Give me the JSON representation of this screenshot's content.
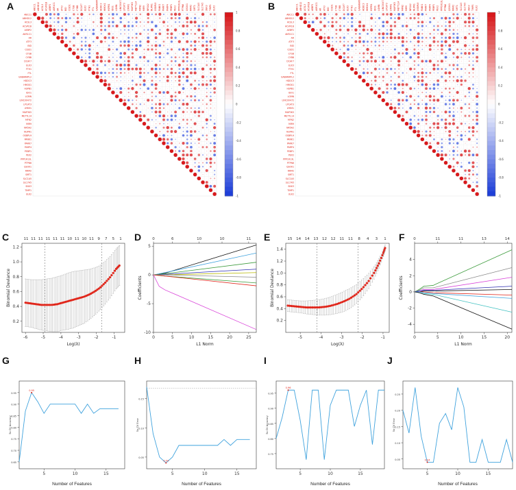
{
  "figure": {
    "panels": {
      "A": {
        "letter": "A"
      },
      "B": {
        "letter": "B"
      },
      "C": {
        "letter": "C"
      },
      "D": {
        "letter": "D"
      },
      "E": {
        "letter": "E"
      },
      "F": {
        "letter": "F"
      },
      "G": {
        "letter": "G"
      },
      "H": {
        "letter": "H"
      },
      "I": {
        "letter": "I"
      },
      "J": {
        "letter": "J"
      }
    }
  },
  "colors": {
    "positive": "#d7191c",
    "negative": "#1f3fd8",
    "diag": "#d7191c",
    "curve": "#e0261b",
    "line": "#3fa2dd"
  },
  "chart_data": [
    {
      "id": "A",
      "type": "heatmap",
      "genes": [
        "ABCC1",
        "ABHD12",
        "ACSL3",
        "ACVR1B",
        "AEBP2",
        "AKR1C1",
        "AR",
        "ATF3",
        "BID",
        "CISD1",
        "CTSB",
        "CYBB",
        "DCAF7",
        "ELK3",
        "FTH1",
        "FTL",
        "GABARAPL2",
        "HDDC3",
        "HMOX1",
        "HSPB1",
        "IDO1",
        "LGMN",
        "LINC00472",
        "LPCAT3",
        "LYRM1",
        "MAP3K5",
        "METTL14",
        "MFN2",
        "MIR9",
        "NR5A2",
        "NUPR1",
        "OSBPL9",
        "PANK1",
        "PARK7",
        "PARP4",
        "PEBP1",
        "PEX2",
        "PPP1R13L",
        "PTPN6",
        "QSOX1",
        "RRM2",
        "SIRT1",
        "SLC1A5",
        "SLC7A5",
        "SNX3",
        "TIMP1",
        "ULK2"
      ],
      "colorbar_ticks": [
        "1",
        "0.8",
        "0.6",
        "0.4",
        "0.2",
        "0",
        "-0.2",
        "-0.4",
        "-0.6",
        "-0.8",
        "-1"
      ],
      "colorbar_range": [
        -1,
        1
      ]
    },
    {
      "id": "B",
      "type": "heatmap",
      "genes": [
        "ABCC1",
        "ABHD12",
        "ACSL3",
        "ACVR1B",
        "AEBP2",
        "AKR1C1",
        "AR",
        "ATF3",
        "BID",
        "CISD1",
        "CTSB",
        "CYBB",
        "DCAF7",
        "ELK3",
        "FTH1",
        "FTL",
        "GABARAPL2",
        "HDDC3",
        "HMOX1",
        "HSPB1",
        "IDO1",
        "LGMN",
        "LINC00472",
        "LPCAT3",
        "LYRM1",
        "MAP3K5",
        "METTL14",
        "MFN2",
        "MIR9",
        "NR5A2",
        "NUPR1",
        "OSBPL9",
        "PANK1",
        "PARK7",
        "PARP4",
        "PEBP1",
        "PEX2",
        "PPP1R13L",
        "PTPN6",
        "QSOX1",
        "RRM2",
        "SIRT1",
        "SLC1A5",
        "SLC7A5",
        "SNX3",
        "TIMP1",
        "ULK2"
      ],
      "colorbar_ticks": [
        "1",
        "0.8",
        "0.6",
        "0.4",
        "0.2",
        "0",
        "-0.2",
        "-0.4",
        "-0.6",
        "-0.8",
        "-1"
      ],
      "colorbar_range": [
        -1,
        1
      ]
    },
    {
      "id": "C",
      "type": "scatter",
      "xlabel": "Log(λ)",
      "ylabel": "Binomial Deviance",
      "xlim": [
        -6.2,
        -0.4
      ],
      "ylim": [
        0.05,
        1.25
      ],
      "xticks": [
        "-6",
        "-5",
        "-4",
        "-3",
        "-2",
        "-1"
      ],
      "xtick_values": [
        -6,
        -5,
        -4,
        -3,
        -2,
        -1
      ],
      "yticks": [
        "0.2",
        "0.4",
        "0.6",
        "0.8",
        "1.0",
        "1.2"
      ],
      "ytick_values": [
        0.2,
        0.4,
        0.6,
        0.8,
        1.0,
        1.2
      ],
      "top_counts": [
        "11",
        "11",
        "11",
        "11",
        "11",
        "11",
        "10",
        "11",
        "10",
        "11",
        "9",
        "7",
        "5",
        "1"
      ],
      "vlines": [
        -4.9,
        -1.7
      ],
      "x": [
        -6.0,
        -5.7,
        -5.4,
        -5.1,
        -4.8,
        -4.5,
        -4.2,
        -3.9,
        -3.6,
        -3.3,
        -3.0,
        -2.7,
        -2.4,
        -2.1,
        -1.8,
        -1.5,
        -1.2,
        -0.9,
        -0.7
      ],
      "y": [
        0.45,
        0.44,
        0.43,
        0.42,
        0.42,
        0.42,
        0.43,
        0.45,
        0.47,
        0.49,
        0.51,
        0.53,
        0.56,
        0.6,
        0.65,
        0.72,
        0.8,
        0.9,
        0.95
      ],
      "err": [
        0.32,
        0.32,
        0.33,
        0.34,
        0.35,
        0.36,
        0.37,
        0.37,
        0.38,
        0.38,
        0.37,
        0.36,
        0.34,
        0.32,
        0.3,
        0.29,
        0.28,
        0.27,
        0.27
      ]
    },
    {
      "id": "D",
      "type": "line",
      "xlabel": "L1 Norm",
      "ylabel": "Coefficients",
      "xlim": [
        0,
        27
      ],
      "ylim": [
        -10,
        5.5
      ],
      "xticks": [
        "0",
        "5",
        "10",
        "15",
        "20",
        "25"
      ],
      "xtick_values": [
        0,
        5,
        10,
        15,
        20,
        25
      ],
      "yticks": [
        "-10",
        "-5",
        "0",
        "5"
      ],
      "ytick_values": [
        -10,
        -5,
        0,
        5
      ],
      "top_axis_labels": [
        "0",
        "6",
        "10",
        "10",
        "11"
      ],
      "top_axis_values": [
        0,
        5,
        12,
        18,
        25
      ],
      "series": [
        {
          "name": "s1",
          "color": "#111111",
          "x": [
            0,
            3,
            27
          ],
          "y": [
            0,
            0.3,
            5.2
          ]
        },
        {
          "name": "s2",
          "color": "#3fa2dd",
          "x": [
            0,
            3,
            27
          ],
          "y": [
            0,
            0.4,
            3.8
          ]
        },
        {
          "name": "s3",
          "color": "#3a9a3a",
          "x": [
            0,
            3,
            27
          ],
          "y": [
            0,
            0.2,
            2.2
          ]
        },
        {
          "name": "s4",
          "color": "#2b2bb0",
          "x": [
            0,
            3,
            27
          ],
          "y": [
            0,
            0.1,
            1.0
          ]
        },
        {
          "name": "s5",
          "color": "#b8b800",
          "x": [
            0,
            3,
            27
          ],
          "y": [
            0,
            0,
            0.4
          ]
        },
        {
          "name": "s6",
          "color": "#888888",
          "x": [
            0,
            3,
            27
          ],
          "y": [
            0,
            0,
            -0.4
          ]
        },
        {
          "name": "s7",
          "color": "#3a9a3a",
          "x": [
            0,
            3,
            27
          ],
          "y": [
            0,
            -0.2,
            -1.4
          ]
        },
        {
          "name": "s8",
          "color": "#e0261b",
          "x": [
            0,
            3,
            27
          ],
          "y": [
            0,
            -0.2,
            -1.9
          ]
        },
        {
          "name": "s9",
          "color": "#d83fd8",
          "x": [
            0,
            1.5,
            3,
            27
          ],
          "y": [
            0,
            -2.0,
            -2.6,
            -9.5
          ]
        }
      ]
    },
    {
      "id": "E",
      "type": "scatter",
      "xlabel": "Log(λ)",
      "ylabel": "Binomial Deviance",
      "xlim": [
        -5.7,
        -0.7
      ],
      "ylim": [
        0.0,
        1.5
      ],
      "xticks": [
        "-5",
        "-4",
        "-3",
        "-2",
        "-1"
      ],
      "xtick_values": [
        -5,
        -4,
        -3,
        -2,
        -1
      ],
      "yticks": [
        "0.2",
        "0.4",
        "0.6",
        "0.8",
        "1.0",
        "1.2",
        "1.4"
      ],
      "ytick_values": [
        0.2,
        0.4,
        0.6,
        0.8,
        1.0,
        1.2,
        1.4
      ],
      "top_counts": [
        "15",
        "14",
        "14",
        "13",
        "12",
        "12",
        "11",
        "11",
        "8",
        "4",
        "3",
        "1"
      ],
      "vlines": [
        -4.2,
        -2.2
      ],
      "x": [
        -5.6,
        -5.3,
        -5.0,
        -4.7,
        -4.4,
        -4.1,
        -3.8,
        -3.5,
        -3.2,
        -2.9,
        -2.6,
        -2.3,
        -2.0,
        -1.7,
        -1.4,
        -1.2,
        -1.0,
        -0.9
      ],
      "y": [
        0.45,
        0.44,
        0.43,
        0.42,
        0.42,
        0.42,
        0.43,
        0.45,
        0.48,
        0.52,
        0.57,
        0.64,
        0.74,
        0.86,
        1.02,
        1.16,
        1.32,
        1.42
      ],
      "err": [
        0.1,
        0.1,
        0.1,
        0.11,
        0.12,
        0.13,
        0.14,
        0.15,
        0.16,
        0.17,
        0.17,
        0.16,
        0.15,
        0.13,
        0.1,
        0.08,
        0.06,
        0.05
      ]
    },
    {
      "id": "F",
      "type": "line",
      "xlabel": "L1 Norm",
      "ylabel": "Coefficients",
      "xlim": [
        0,
        21
      ],
      "ylim": [
        -5,
        6
      ],
      "xticks": [
        "0",
        "5",
        "10",
        "15",
        "20"
      ],
      "xtick_values": [
        0,
        5,
        10,
        15,
        20
      ],
      "yticks": [
        "-4",
        "-2",
        "0",
        "2",
        "4"
      ],
      "ytick_values": [
        -4,
        -2,
        0,
        2,
        4
      ],
      "top_axis_labels": [
        "0",
        "11",
        "11",
        "13",
        "14"
      ],
      "top_axis_values": [
        0,
        5,
        10,
        15,
        20
      ],
      "series": [
        {
          "name": "s1",
          "color": "#3a9a3a",
          "x": [
            0,
            1,
            2,
            4,
            21
          ],
          "y": [
            0,
            0.3,
            0.7,
            0.8,
            5.2
          ]
        },
        {
          "name": "s2",
          "color": "#888888",
          "x": [
            0,
            1,
            2,
            4,
            21
          ],
          "y": [
            0,
            0.2,
            0.5,
            0.5,
            3.0
          ]
        },
        {
          "name": "s3",
          "color": "#d83fd8",
          "x": [
            0,
            1,
            2,
            4,
            21
          ],
          "y": [
            0,
            0.1,
            0.3,
            0.3,
            1.8
          ]
        },
        {
          "name": "s4",
          "color": "#2b2bb0",
          "x": [
            0,
            1,
            2,
            4,
            21
          ],
          "y": [
            0,
            0.1,
            0.2,
            0.2,
            0.7
          ]
        },
        {
          "name": "s5",
          "color": "#111111",
          "x": [
            0,
            1,
            2,
            4,
            21
          ],
          "y": [
            0,
            0,
            0.1,
            0.1,
            0.3
          ]
        },
        {
          "name": "s6",
          "color": "#e0261b",
          "x": [
            0,
            1,
            2,
            4,
            21
          ],
          "y": [
            0,
            0,
            0,
            -0.1,
            -0.4
          ]
        },
        {
          "name": "s7",
          "color": "#3fa2dd",
          "x": [
            0,
            1,
            2,
            4,
            21
          ],
          "y": [
            0,
            0,
            -0.1,
            -0.2,
            -0.8
          ]
        },
        {
          "name": "s8",
          "color": "#3fc0c0",
          "x": [
            0,
            1,
            2,
            4,
            21
          ],
          "y": [
            0,
            -0.1,
            -0.2,
            -0.3,
            -2.5
          ]
        },
        {
          "name": "s9",
          "color": "#111111",
          "x": [
            0,
            1,
            2,
            4,
            21
          ],
          "y": [
            0,
            -0.1,
            -0.3,
            -0.5,
            -4.6
          ]
        }
      ]
    },
    {
      "id": "G",
      "type": "line",
      "xlabel": "Number of Features",
      "ylabel": "5x CV Accuracy",
      "xlim": [
        1,
        18
      ],
      "ylim": [
        0.62,
        1.0
      ],
      "xticks": [
        "5",
        "10",
        "15"
      ],
      "xtick_values": [
        5,
        10,
        15
      ],
      "yticks": [
        "0.65",
        "0.70",
        "0.75",
        "0.80",
        "0.85",
        "0.90",
        "0.95"
      ],
      "ytick_values": [
        0.65,
        0.7,
        0.75,
        0.8,
        0.85,
        0.9,
        0.95
      ],
      "x": [
        1,
        2,
        3,
        4,
        5,
        6,
        7,
        8,
        9,
        10,
        11,
        12,
        13,
        14,
        15,
        16,
        17
      ],
      "y": [
        0.65,
        0.87,
        0.95,
        0.91,
        0.86,
        0.9,
        0.9,
        0.9,
        0.9,
        0.9,
        0.86,
        0.9,
        0.86,
        0.88,
        0.88,
        0.88,
        0.88
      ],
      "best_label": "0.95"
    },
    {
      "id": "H",
      "type": "line",
      "xlabel": "Number of Features",
      "ylabel": "5x CV Error",
      "xlim": [
        1,
        18
      ],
      "ylim": [
        0.03,
        0.18
      ],
      "xticks": [
        "5",
        "10",
        "15"
      ],
      "xtick_values": [
        5,
        10,
        15
      ],
      "yticks": [
        "0.05",
        "0.10",
        "0.15"
      ],
      "ytick_values": [
        0.05,
        0.1,
        0.15
      ],
      "hline": 0.168,
      "x": [
        1,
        2,
        3,
        4,
        5,
        6,
        7,
        8,
        9,
        10,
        11,
        12,
        13,
        14,
        15,
        16,
        17
      ],
      "y": [
        0.17,
        0.09,
        0.05,
        0.04,
        0.05,
        0.07,
        0.07,
        0.07,
        0.07,
        0.07,
        0.07,
        0.07,
        0.08,
        0.07,
        0.08,
        0.08,
        0.08
      ],
      "best_label": "0.04"
    },
    {
      "id": "I",
      "type": "line",
      "xlabel": "Number of Features",
      "ylabel": "5x CV Accuracy",
      "xlim": [
        1,
        19
      ],
      "ylim": [
        0.7,
        0.99
      ],
      "xticks": [
        "5",
        "10",
        "15"
      ],
      "xtick_values": [
        5,
        10,
        15
      ],
      "yticks": [
        "0.75",
        "0.80",
        "0.85",
        "0.90",
        "0.95"
      ],
      "ytick_values": [
        0.75,
        0.8,
        0.85,
        0.9,
        0.95
      ],
      "x": [
        1,
        2,
        3,
        4,
        5,
        6,
        7,
        8,
        9,
        10,
        11,
        12,
        13,
        14,
        15,
        16,
        17,
        18,
        19
      ],
      "y": [
        0.8,
        0.87,
        0.96,
        0.96,
        0.86,
        0.73,
        0.96,
        0.96,
        0.73,
        0.91,
        0.96,
        0.96,
        0.96,
        0.84,
        0.91,
        0.96,
        0.78,
        0.96,
        0.96
      ],
      "best_label": "0.96"
    },
    {
      "id": "J",
      "type": "line",
      "xlabel": "Number of Features",
      "ylabel": "5x CV Error",
      "xlim": [
        1,
        19
      ],
      "ylim": [
        0.02,
        0.29
      ],
      "xticks": [
        "5",
        "10",
        "15"
      ],
      "xtick_values": [
        5,
        10,
        15
      ],
      "yticks": [
        "0.05",
        "0.10",
        "0.15",
        "0.20",
        "0.25"
      ],
      "ytick_values": [
        0.05,
        0.1,
        0.15,
        0.2,
        0.25
      ],
      "x": [
        1,
        2,
        3,
        4,
        5,
        6,
        7,
        8,
        9,
        10,
        11,
        12,
        13,
        14,
        15,
        16,
        17,
        18,
        19
      ],
      "y": [
        0.2,
        0.13,
        0.27,
        0.12,
        0.04,
        0.04,
        0.16,
        0.19,
        0.14,
        0.27,
        0.21,
        0.04,
        0.04,
        0.11,
        0.04,
        0.04,
        0.04,
        0.11,
        0.04
      ],
      "best_label": "0.04"
    }
  ]
}
